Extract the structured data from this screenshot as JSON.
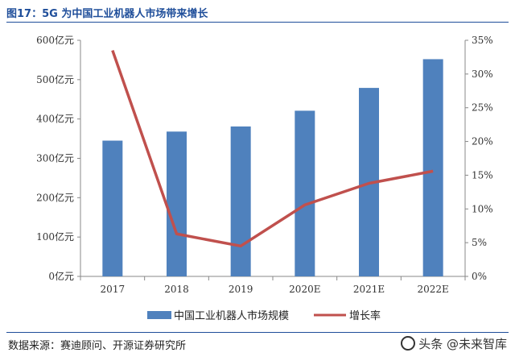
{
  "header": {
    "title": "图17：5G 为中国工业机器人市场带来增长"
  },
  "chart_data": {
    "type": "bar",
    "categories": [
      "2017",
      "2018",
      "2019",
      "2020E",
      "2021E",
      "2022E"
    ],
    "series": [
      {
        "name": "中国工业机器人市场规模",
        "type": "bar",
        "color": "#4f81bd",
        "values": [
          345,
          368,
          381,
          421,
          479,
          552
        ]
      },
      {
        "name": "增长率",
        "type": "line",
        "color": "#c0504d",
        "values": [
          33.5,
          6.3,
          4.5,
          10.6,
          13.8,
          15.6
        ]
      }
    ],
    "y_left": {
      "ticks": [
        "0亿元",
        "100亿元",
        "200亿元",
        "300亿元",
        "400亿元",
        "500亿元",
        "600亿元"
      ],
      "ylim": [
        0,
        600
      ]
    },
    "y_right": {
      "ticks": [
        "0%",
        "5%",
        "10%",
        "15%",
        "20%",
        "25%",
        "30%",
        "35%"
      ],
      "ylim": [
        0,
        35
      ]
    },
    "legend_position": "bottom"
  },
  "footer": {
    "source": "数据来源：赛迪顾问、开源证券研究所",
    "watermark": "头条 @未来智库"
  }
}
